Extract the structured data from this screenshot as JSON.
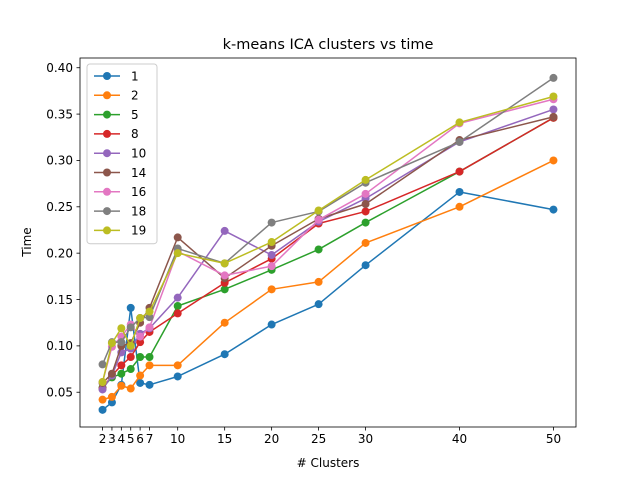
{
  "chart_data": {
    "type": "line",
    "title": "k-means ICA clusters vs time",
    "xlabel": "# Clusters",
    "ylabel": "Time",
    "x": [
      2,
      3,
      4,
      5,
      6,
      7,
      10,
      15,
      20,
      25,
      30,
      40,
      50
    ],
    "xticks": [
      2,
      3,
      4,
      5,
      6,
      7,
      10,
      15,
      20,
      25,
      30,
      40,
      50
    ],
    "xlim": [
      -0.4,
      52.4
    ],
    "yticks": [
      0.05,
      0.1,
      0.15,
      0.2,
      0.25,
      0.3,
      0.35,
      0.4
    ],
    "ytick_labels": [
      "0.05",
      "0.10",
      "0.15",
      "0.20",
      "0.25",
      "0.30",
      "0.35",
      "0.40"
    ],
    "ylim": [
      0.0125,
      0.4105
    ],
    "grid": false,
    "legend_position": "top-left",
    "series": [
      {
        "name": "1",
        "color": "#1f77b4",
        "values": [
          0.031,
          0.039,
          0.058,
          0.141,
          0.06,
          0.058,
          0.067,
          0.091,
          0.123,
          0.145,
          0.187,
          0.266,
          0.247
        ]
      },
      {
        "name": "2",
        "color": "#ff7f0e",
        "values": [
          0.042,
          0.045,
          0.057,
          0.054,
          0.068,
          0.079,
          0.079,
          0.125,
          0.161,
          0.169,
          0.211,
          0.25,
          0.3
        ]
      },
      {
        "name": "5",
        "color": "#2ca02c",
        "values": [
          0.055,
          0.066,
          0.07,
          0.075,
          0.088,
          0.088,
          0.143,
          0.161,
          0.182,
          0.204,
          0.233,
          0.288,
          0.346
        ]
      },
      {
        "name": "8",
        "color": "#d62728",
        "values": [
          0.054,
          0.068,
          0.079,
          0.088,
          0.104,
          0.115,
          0.135,
          0.168,
          0.194,
          0.232,
          0.245,
          0.288,
          0.346
        ]
      },
      {
        "name": "10",
        "color": "#9467bd",
        "values": [
          0.053,
          0.068,
          0.093,
          0.097,
          0.113,
          0.119,
          0.152,
          0.224,
          0.198,
          0.234,
          0.259,
          0.32,
          0.355
        ]
      },
      {
        "name": "14",
        "color": "#8c564b",
        "values": [
          0.06,
          0.07,
          0.1,
          0.103,
          0.125,
          0.141,
          0.217,
          0.173,
          0.208,
          0.237,
          0.253,
          0.322,
          0.347
        ]
      },
      {
        "name": "16",
        "color": "#e377c2",
        "values": [
          0.061,
          0.099,
          0.11,
          0.123,
          0.11,
          0.12,
          0.202,
          0.176,
          0.186,
          0.236,
          0.264,
          0.34,
          0.366
        ]
      },
      {
        "name": "18",
        "color": "#7f7f7f",
        "values": [
          0.08,
          0.104,
          0.104,
          0.12,
          0.13,
          0.131,
          0.205,
          0.189,
          0.233,
          0.245,
          0.276,
          0.32,
          0.389
        ]
      },
      {
        "name": "19",
        "color": "#bcbd22",
        "values": [
          0.061,
          0.103,
          0.119,
          0.1,
          0.13,
          0.137,
          0.2,
          0.189,
          0.212,
          0.246,
          0.279,
          0.341,
          0.369
        ]
      }
    ]
  }
}
